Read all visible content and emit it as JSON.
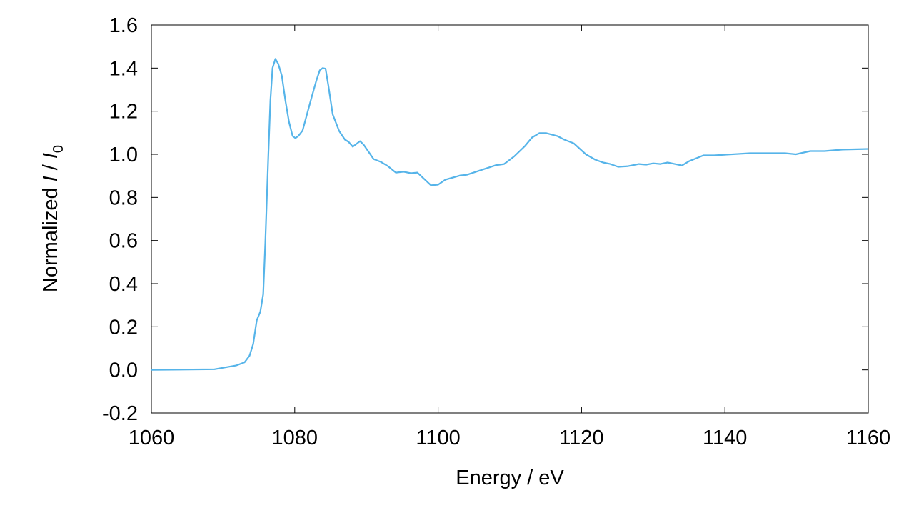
{
  "chart_data": {
    "type": "line",
    "title": "",
    "xlabel": "Energy / eV",
    "ylabel_parts": {
      "prefix": "Normalized ",
      "i1": "I",
      "slash": " / ",
      "i2": "I",
      "sub": "0"
    },
    "xlim": [
      1060,
      1160
    ],
    "ylim": [
      -0.2,
      1.6
    ],
    "xticks": [
      "1060",
      "1080",
      "1100",
      "1120",
      "1140",
      "1160"
    ],
    "yticks": [
      "-0.2",
      "0.0",
      "0.2",
      "0.4",
      "0.6",
      "0.8",
      "1.0",
      "1.2",
      "1.4",
      "1.6"
    ],
    "grid": false,
    "legend": "none",
    "series": [
      {
        "color": "#56b4e9",
        "x": [
          1060,
          1068.8,
          1071.8,
          1073,
          1073.7,
          1074.2,
          1074.7,
          1075.2,
          1075.6,
          1075.9,
          1076.3,
          1076.6,
          1076.9,
          1077.3,
          1077.7,
          1078.2,
          1078.7,
          1079.2,
          1079.7,
          1080.1,
          1080.5,
          1081.1,
          1081.7,
          1082.4,
          1083.0,
          1083.5,
          1083.9,
          1084.3,
          1084.7,
          1085.3,
          1086.2,
          1087.0,
          1087.5,
          1088.1,
          1089.1,
          1089.6,
          1091.0,
          1092.0,
          1093.0,
          1094.1,
          1095.2,
          1096.2,
          1097.1,
          1099.0,
          1100.0,
          1101.0,
          1103.1,
          1104.0,
          1108.0,
          1109.2,
          1110.6,
          1112.1,
          1113.1,
          1114.1,
          1115.1,
          1116.6,
          1117.6,
          1118.9,
          1120.6,
          1121.9,
          1123.0,
          1124.0,
          1125.1,
          1126.5,
          1128.0,
          1129.0,
          1130.0,
          1131.0,
          1132.0,
          1133.0,
          1134.0,
          1135.0,
          1137.0,
          1138.5,
          1143.5,
          1148.4,
          1149.9,
          1151.9,
          1153.9,
          1156.4,
          1160
        ],
        "y": [
          0,
          0.003,
          0.02,
          0.035,
          0.066,
          0.12,
          0.23,
          0.27,
          0.35,
          0.59,
          0.985,
          1.25,
          1.4,
          1.443,
          1.42,
          1.365,
          1.25,
          1.15,
          1.085,
          1.075,
          1.085,
          1.11,
          1.185,
          1.27,
          1.34,
          1.39,
          1.4,
          1.397,
          1.317,
          1.185,
          1.108,
          1.068,
          1.058,
          1.035,
          1.061,
          1.045,
          0.978,
          0.965,
          0.945,
          0.915,
          0.919,
          0.912,
          0.915,
          0.856,
          0.859,
          0.882,
          0.902,
          0.905,
          0.949,
          0.955,
          0.99,
          1.038,
          1.078,
          1.098,
          1.098,
          1.085,
          1.068,
          1.051,
          1.0,
          0.975,
          0.962,
          0.955,
          0.942,
          0.945,
          0.955,
          0.952,
          0.958,
          0.955,
          0.962,
          0.955,
          0.948,
          0.968,
          0.995,
          0.995,
          1.005,
          1.005,
          1.0,
          1.015,
          1.015,
          1.022,
          1.025
        ]
      }
    ]
  }
}
